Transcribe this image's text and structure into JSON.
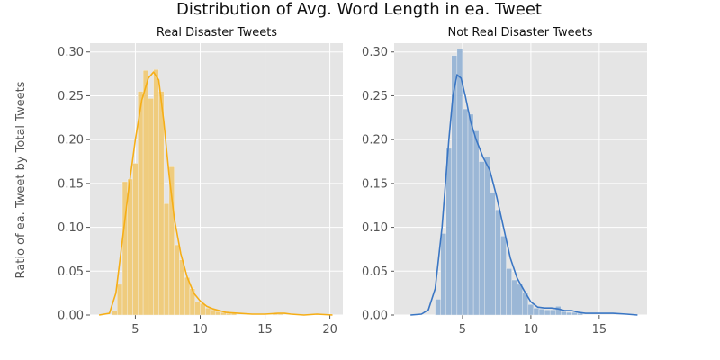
{
  "figure": {
    "suptitle": "Distribution of Avg. Word Length in ea. Tweet",
    "ylabel": "Ratio of ea. Tweet by Total Tweets"
  },
  "chart_data": [
    {
      "type": "bar",
      "title": "Real Disaster Tweets",
      "xlabel": "",
      "ylabel": "Ratio of ea. Tweet by Total Tweets",
      "xlim": [
        1.5,
        21.0
      ],
      "ylim": [
        0.0,
        0.31
      ],
      "xticks": [
        5,
        10,
        15,
        20
      ],
      "yticks": [
        0.0,
        0.05,
        0.1,
        0.15,
        0.2,
        0.25,
        0.3
      ],
      "ytick_labels": [
        "0.00",
        "0.05",
        "0.10",
        "0.15",
        "0.20",
        "0.25",
        "0.30"
      ],
      "grid": true,
      "bar_color": "#efcc7e",
      "line_color": "#f6ae16",
      "histogram": [
        {
          "x0": 3.2,
          "x1": 3.6,
          "y": 0.005
        },
        {
          "x0": 3.6,
          "x1": 4.0,
          "y": 0.035
        },
        {
          "x0": 4.0,
          "x1": 4.4,
          "y": 0.152
        },
        {
          "x0": 4.4,
          "x1": 4.8,
          "y": 0.155
        },
        {
          "x0": 4.8,
          "x1": 5.2,
          "y": 0.173
        },
        {
          "x0": 5.2,
          "x1": 5.6,
          "y": 0.255
        },
        {
          "x0": 5.6,
          "x1": 6.0,
          "y": 0.279
        },
        {
          "x0": 6.0,
          "x1": 6.4,
          "y": 0.247
        },
        {
          "x0": 6.4,
          "x1": 6.8,
          "y": 0.28
        },
        {
          "x0": 6.8,
          "x1": 7.2,
          "y": 0.255
        },
        {
          "x0": 7.2,
          "x1": 7.6,
          "y": 0.127
        },
        {
          "x0": 7.6,
          "x1": 8.0,
          "y": 0.169
        },
        {
          "x0": 8.0,
          "x1": 8.4,
          "y": 0.08
        },
        {
          "x0": 8.4,
          "x1": 8.8,
          "y": 0.063
        },
        {
          "x0": 8.8,
          "x1": 9.2,
          "y": 0.043
        },
        {
          "x0": 9.2,
          "x1": 9.6,
          "y": 0.03
        },
        {
          "x0": 9.6,
          "x1": 10.0,
          "y": 0.015
        },
        {
          "x0": 10.0,
          "x1": 10.4,
          "y": 0.013
        },
        {
          "x0": 10.4,
          "x1": 10.8,
          "y": 0.008
        },
        {
          "x0": 10.8,
          "x1": 11.2,
          "y": 0.006
        },
        {
          "x0": 11.2,
          "x1": 11.6,
          "y": 0.004
        },
        {
          "x0": 11.6,
          "x1": 12.0,
          "y": 0.003
        },
        {
          "x0": 12.0,
          "x1": 12.4,
          "y": 0.002
        },
        {
          "x0": 12.4,
          "x1": 12.8,
          "y": 0.002
        },
        {
          "x0": 15.6,
          "x1": 16.0,
          "y": 0.001
        },
        {
          "x0": 16.0,
          "x1": 16.4,
          "y": 0.001
        },
        {
          "x0": 19.8,
          "x1": 20.2,
          "y": 0.001
        }
      ],
      "kde": {
        "x": [
          2.2,
          3.0,
          3.5,
          4.0,
          4.5,
          5.0,
          5.5,
          6.0,
          6.4,
          6.8,
          7.2,
          7.6,
          8.0,
          8.5,
          9.0,
          9.5,
          10.0,
          10.5,
          11.0,
          11.5,
          12.0,
          13.0,
          14.0,
          15.0,
          16.0,
          16.5,
          17.0,
          18.0,
          19.0,
          20.2
        ],
        "y": [
          0.0,
          0.002,
          0.025,
          0.085,
          0.145,
          0.2,
          0.245,
          0.27,
          0.277,
          0.268,
          0.22,
          0.16,
          0.11,
          0.07,
          0.043,
          0.025,
          0.016,
          0.01,
          0.007,
          0.005,
          0.003,
          0.002,
          0.001,
          0.001,
          0.002,
          0.002,
          0.001,
          0.0,
          0.001,
          0.0
        ]
      }
    },
    {
      "type": "bar",
      "title": "Not Real Disaster Tweets",
      "xlabel": "",
      "ylabel": "",
      "xlim": [
        0.0,
        18.5
      ],
      "ylim": [
        0.0,
        0.31
      ],
      "xticks": [
        5,
        10,
        15
      ],
      "yticks": [
        0.0,
        0.05,
        0.1,
        0.15,
        0.2,
        0.25,
        0.3
      ],
      "ytick_labels": [
        "0.00",
        "0.05",
        "0.10",
        "0.15",
        "0.20",
        "0.25",
        "0.30"
      ],
      "grid": true,
      "bar_color": "#9bb7d6",
      "line_color": "#3a76c4",
      "histogram": [
        {
          "x0": 3.0,
          "x1": 3.4,
          "y": 0.018
        },
        {
          "x0": 3.4,
          "x1": 3.8,
          "y": 0.093
        },
        {
          "x0": 3.8,
          "x1": 4.2,
          "y": 0.19
        },
        {
          "x0": 4.2,
          "x1": 4.6,
          "y": 0.296
        },
        {
          "x0": 4.6,
          "x1": 5.0,
          "y": 0.303
        },
        {
          "x0": 5.0,
          "x1": 5.4,
          "y": 0.235
        },
        {
          "x0": 5.4,
          "x1": 5.8,
          "y": 0.229
        },
        {
          "x0": 5.8,
          "x1": 6.2,
          "y": 0.21
        },
        {
          "x0": 6.2,
          "x1": 6.6,
          "y": 0.175
        },
        {
          "x0": 6.6,
          "x1": 7.0,
          "y": 0.18
        },
        {
          "x0": 7.0,
          "x1": 7.4,
          "y": 0.14
        },
        {
          "x0": 7.4,
          "x1": 7.8,
          "y": 0.12
        },
        {
          "x0": 7.8,
          "x1": 8.2,
          "y": 0.09
        },
        {
          "x0": 8.2,
          "x1": 8.6,
          "y": 0.053
        },
        {
          "x0": 8.6,
          "x1": 9.0,
          "y": 0.04
        },
        {
          "x0": 9.0,
          "x1": 9.4,
          "y": 0.035
        },
        {
          "x0": 9.4,
          "x1": 9.8,
          "y": 0.025
        },
        {
          "x0": 9.8,
          "x1": 10.2,
          "y": 0.012
        },
        {
          "x0": 10.2,
          "x1": 10.6,
          "y": 0.008
        },
        {
          "x0": 10.6,
          "x1": 11.0,
          "y": 0.007
        },
        {
          "x0": 11.0,
          "x1": 11.4,
          "y": 0.006
        },
        {
          "x0": 11.4,
          "x1": 11.8,
          "y": 0.006
        },
        {
          "x0": 11.8,
          "x1": 12.2,
          "y": 0.01
        },
        {
          "x0": 12.2,
          "x1": 12.6,
          "y": 0.004
        },
        {
          "x0": 12.6,
          "x1": 13.0,
          "y": 0.003
        },
        {
          "x0": 13.0,
          "x1": 13.4,
          "y": 0.003
        },
        {
          "x0": 13.4,
          "x1": 13.8,
          "y": 0.002
        }
      ],
      "kde": {
        "x": [
          1.2,
          2.0,
          2.5,
          3.0,
          3.5,
          4.0,
          4.3,
          4.6,
          4.9,
          5.2,
          5.6,
          6.0,
          6.5,
          7.0,
          7.5,
          8.0,
          8.5,
          9.0,
          9.5,
          10.0,
          10.5,
          11.0,
          11.5,
          12.0,
          12.5,
          13.0,
          13.5,
          14.0,
          15.0,
          16.0,
          17.0,
          17.8
        ],
        "y": [
          0.0,
          0.001,
          0.006,
          0.03,
          0.1,
          0.2,
          0.25,
          0.274,
          0.27,
          0.25,
          0.22,
          0.2,
          0.18,
          0.165,
          0.135,
          0.1,
          0.065,
          0.042,
          0.028,
          0.015,
          0.009,
          0.008,
          0.008,
          0.007,
          0.005,
          0.005,
          0.003,
          0.002,
          0.002,
          0.002,
          0.001,
          0.0
        ]
      }
    }
  ]
}
